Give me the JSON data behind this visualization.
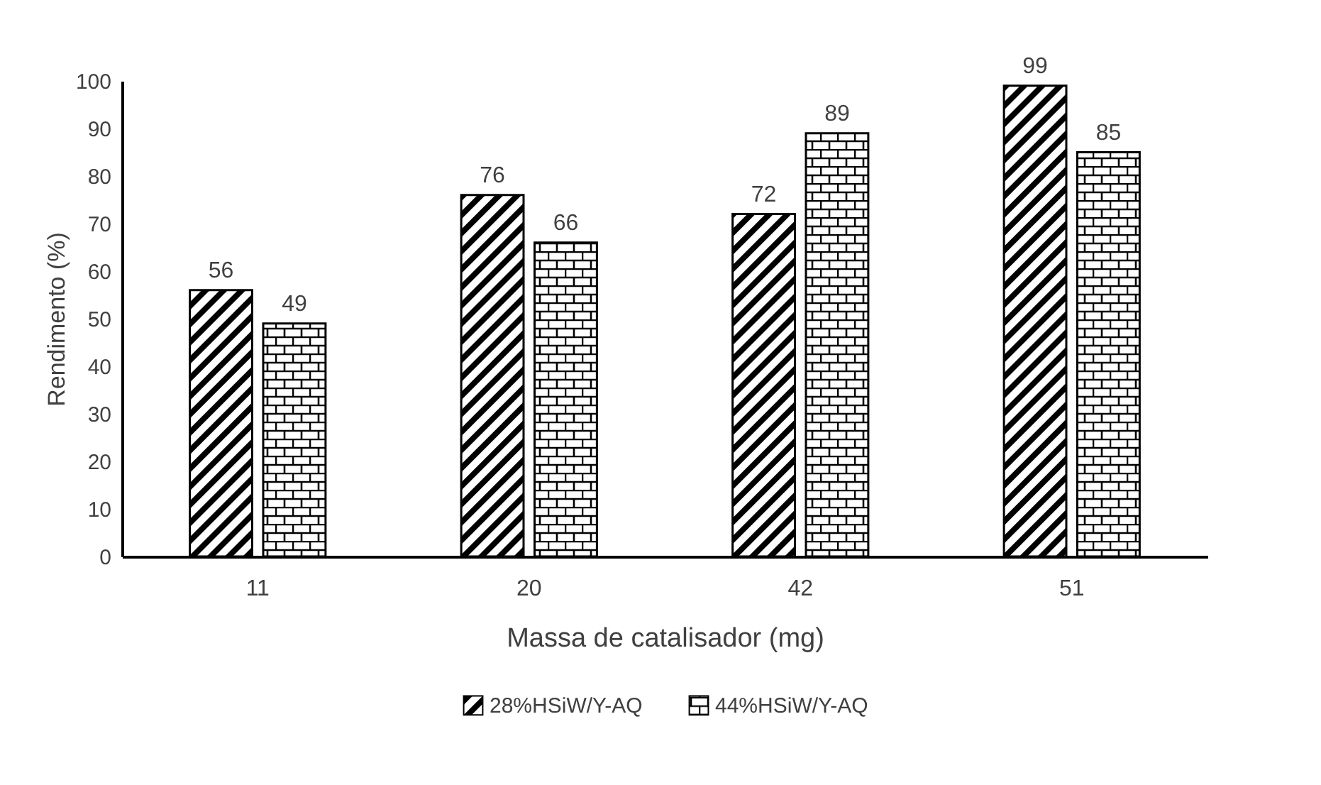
{
  "chart_data": {
    "type": "bar",
    "xlabel": "Massa de catalisador (mg)",
    "ylabel": "Rendimento (%)",
    "categories": [
      "11",
      "20",
      "42",
      "51"
    ],
    "series": [
      {
        "name": "28%HSiW/Y-AQ",
        "color": "#000000",
        "values": [
          56,
          76,
          72,
          99
        ]
      },
      {
        "name": "44%HSiW/Y-AQ",
        "color": "#000000",
        "values": [
          49,
          66,
          89,
          85
        ]
      }
    ],
    "ylim": [
      0,
      100
    ],
    "yticks": [
      0,
      10,
      20,
      30,
      40,
      50,
      60,
      70,
      80,
      90,
      100
    ],
    "grid": false,
    "legend": "bottom",
    "data_labels": true
  }
}
